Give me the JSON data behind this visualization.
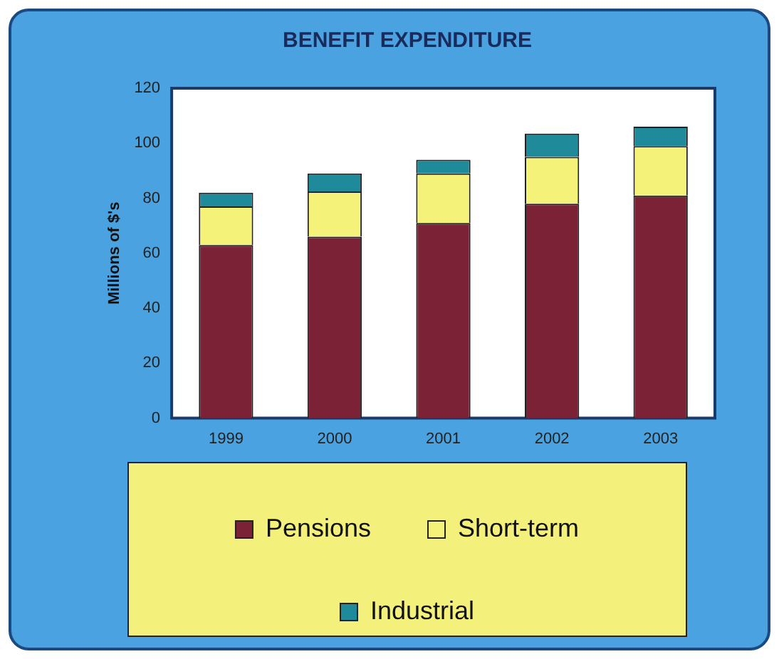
{
  "chart_data": {
    "type": "bar",
    "title": "BENEFIT EXPENDITURE",
    "ylabel": "Millions of $'s",
    "categories": [
      "1999",
      "2000",
      "2001",
      "2002",
      "2003"
    ],
    "series": [
      {
        "name": "Pensions",
        "color": "#7b2236",
        "values": [
          63,
          66,
          71,
          78,
          81
        ]
      },
      {
        "name": "Short-term",
        "color": "#f5f27a",
        "values": [
          14,
          16.5,
          18,
          17,
          18
        ]
      },
      {
        "name": "Industrial",
        "color": "#1f8a9a",
        "values": [
          5,
          6.5,
          5,
          8.5,
          7
        ]
      }
    ],
    "stacked": true,
    "ylim": [
      0,
      120
    ],
    "yticks": [
      0,
      20,
      40,
      60,
      80,
      100,
      120
    ],
    "grid": false,
    "legend": "bottom"
  }
}
